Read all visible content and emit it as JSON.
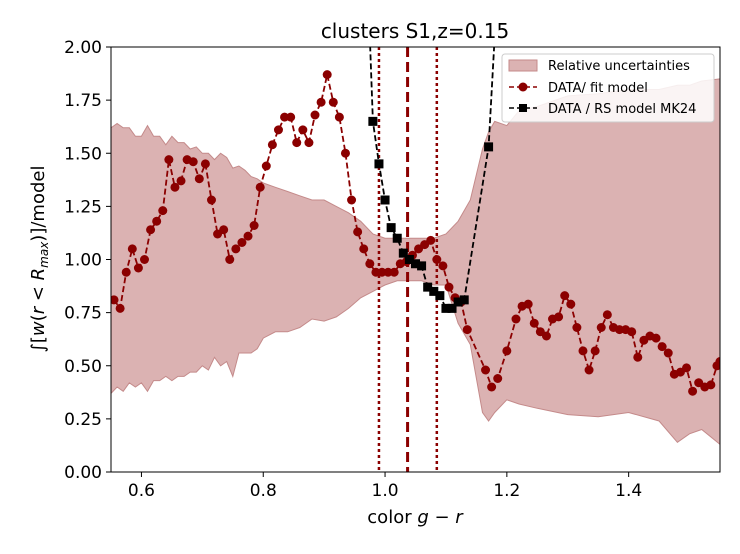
{
  "chart_data": {
    "type": "line",
    "title": "clusters S1,z=0.15",
    "xlabel": "color g − r",
    "ylabel": "∫[w(r < R_max)]/model",
    "xlim": [
      0.55,
      1.55
    ],
    "ylim": [
      0.0,
      2.0
    ],
    "xticks": [
      0.6,
      0.8,
      1.0,
      1.2,
      1.4
    ],
    "xtick_labels": [
      "0.6",
      "0.8",
      "1.0",
      "1.2",
      "1.4"
    ],
    "yticks": [
      0.0,
      0.25,
      0.5,
      0.75,
      1.0,
      1.25,
      1.5,
      1.75,
      2.0
    ],
    "ytick_labels": [
      "0.00",
      "0.25",
      "0.50",
      "0.75",
      "1.00",
      "1.25",
      "1.50",
      "1.75",
      "2.00"
    ],
    "grid": false,
    "legend_position": "top-right",
    "legend": [
      {
        "label": "Relative uncertainties",
        "kind": "band",
        "color": "#dbb2b2"
      },
      {
        "label": "DATA/ fit model",
        "kind": "line-circle",
        "color": "#8b0000"
      },
      {
        "label": "DATA / RS model MK24",
        "kind": "line-square",
        "color": "#000000"
      }
    ],
    "band": {
      "color": "#dbb2b2",
      "edge": "#c48a8a",
      "upper": [
        [
          0.55,
          1.62
        ],
        [
          0.56,
          1.64
        ],
        [
          0.57,
          1.62
        ],
        [
          0.58,
          1.62
        ],
        [
          0.59,
          1.58
        ],
        [
          0.6,
          1.58
        ],
        [
          0.61,
          1.63
        ],
        [
          0.62,
          1.58
        ],
        [
          0.63,
          1.58
        ],
        [
          0.64,
          1.54
        ],
        [
          0.65,
          1.58
        ],
        [
          0.66,
          1.55
        ],
        [
          0.67,
          1.55
        ],
        [
          0.68,
          1.52
        ],
        [
          0.69,
          1.53
        ],
        [
          0.7,
          1.5
        ],
        [
          0.71,
          1.5
        ],
        [
          0.72,
          1.47
        ],
        [
          0.73,
          1.5
        ],
        [
          0.74,
          1.48
        ],
        [
          0.75,
          1.43
        ],
        [
          0.76,
          1.44
        ],
        [
          0.77,
          1.42
        ],
        [
          0.78,
          1.39
        ],
        [
          0.79,
          1.38
        ],
        [
          0.8,
          1.36
        ],
        [
          0.82,
          1.34
        ],
        [
          0.84,
          1.32
        ],
        [
          0.86,
          1.3
        ],
        [
          0.88,
          1.28
        ],
        [
          0.9,
          1.28
        ],
        [
          0.92,
          1.25
        ],
        [
          0.94,
          1.22
        ],
        [
          0.96,
          1.18
        ],
        [
          0.98,
          1.12
        ],
        [
          1.0,
          1.1
        ],
        [
          1.02,
          1.1
        ],
        [
          1.04,
          1.1
        ],
        [
          1.06,
          1.1
        ],
        [
          1.08,
          1.1
        ],
        [
          1.1,
          1.12
        ],
        [
          1.12,
          1.18
        ],
        [
          1.14,
          1.28
        ],
        [
          1.16,
          1.52
        ],
        [
          1.17,
          1.6
        ],
        [
          1.18,
          1.65
        ],
        [
          1.2,
          1.63
        ],
        [
          1.22,
          1.7
        ],
        [
          1.25,
          1.72
        ],
        [
          1.3,
          1.77
        ],
        [
          1.35,
          1.78
        ],
        [
          1.4,
          1.8
        ],
        [
          1.45,
          1.8
        ],
        [
          1.48,
          1.82
        ],
        [
          1.5,
          1.82
        ],
        [
          1.52,
          1.84
        ],
        [
          1.55,
          1.85
        ]
      ],
      "lower": [
        [
          0.55,
          0.37
        ],
        [
          0.56,
          0.4
        ],
        [
          0.57,
          0.38
        ],
        [
          0.58,
          0.42
        ],
        [
          0.59,
          0.4
        ],
        [
          0.6,
          0.42
        ],
        [
          0.61,
          0.38
        ],
        [
          0.62,
          0.43
        ],
        [
          0.63,
          0.43
        ],
        [
          0.64,
          0.45
        ],
        [
          0.65,
          0.43
        ],
        [
          0.66,
          0.45
        ],
        [
          0.67,
          0.45
        ],
        [
          0.68,
          0.47
        ],
        [
          0.69,
          0.47
        ],
        [
          0.7,
          0.5
        ],
        [
          0.71,
          0.48
        ],
        [
          0.72,
          0.54
        ],
        [
          0.73,
          0.5
        ],
        [
          0.74,
          0.52
        ],
        [
          0.75,
          0.45
        ],
        [
          0.76,
          0.56
        ],
        [
          0.77,
          0.56
        ],
        [
          0.78,
          0.56
        ],
        [
          0.79,
          0.58
        ],
        [
          0.8,
          0.63
        ],
        [
          0.82,
          0.66
        ],
        [
          0.84,
          0.66
        ],
        [
          0.86,
          0.68
        ],
        [
          0.88,
          0.72
        ],
        [
          0.9,
          0.71
        ],
        [
          0.92,
          0.73
        ],
        [
          0.94,
          0.77
        ],
        [
          0.96,
          0.82
        ],
        [
          0.98,
          0.85
        ],
        [
          1.0,
          0.88
        ],
        [
          1.02,
          0.9
        ],
        [
          1.04,
          0.9
        ],
        [
          1.06,
          0.9
        ],
        [
          1.08,
          0.88
        ],
        [
          1.1,
          0.88
        ],
        [
          1.12,
          0.7
        ],
        [
          1.14,
          0.6
        ],
        [
          1.16,
          0.28
        ],
        [
          1.17,
          0.24
        ],
        [
          1.18,
          0.28
        ],
        [
          1.2,
          0.34
        ],
        [
          1.22,
          0.32
        ],
        [
          1.25,
          0.3
        ],
        [
          1.3,
          0.27
        ],
        [
          1.35,
          0.26
        ],
        [
          1.4,
          0.28
        ],
        [
          1.45,
          0.24
        ],
        [
          1.48,
          0.14
        ],
        [
          1.5,
          0.18
        ],
        [
          1.52,
          0.2
        ],
        [
          1.55,
          0.13
        ]
      ]
    },
    "series": [
      {
        "name": "DATA/ fit model",
        "color": "#8b0000",
        "marker": "circle",
        "points": [
          [
            0.555,
            0.81
          ],
          [
            0.565,
            0.77
          ],
          [
            0.575,
            0.94
          ],
          [
            0.585,
            1.05
          ],
          [
            0.595,
            0.96
          ],
          [
            0.605,
            1.0
          ],
          [
            0.615,
            1.14
          ],
          [
            0.625,
            1.18
          ],
          [
            0.635,
            1.23
          ],
          [
            0.645,
            1.47
          ],
          [
            0.655,
            1.34
          ],
          [
            0.665,
            1.37
          ],
          [
            0.675,
            1.47
          ],
          [
            0.685,
            1.46
          ],
          [
            0.695,
            1.38
          ],
          [
            0.705,
            1.45
          ],
          [
            0.715,
            1.28
          ],
          [
            0.725,
            1.12
          ],
          [
            0.735,
            1.14
          ],
          [
            0.745,
            1.0
          ],
          [
            0.755,
            1.05
          ],
          [
            0.765,
            1.08
          ],
          [
            0.775,
            1.11
          ],
          [
            0.785,
            1.16
          ],
          [
            0.795,
            1.34
          ],
          [
            0.805,
            1.44
          ],
          [
            0.815,
            1.54
          ],
          [
            0.825,
            1.61
          ],
          [
            0.835,
            1.67
          ],
          [
            0.845,
            1.67
          ],
          [
            0.855,
            1.55
          ],
          [
            0.865,
            1.61
          ],
          [
            0.875,
            1.55
          ],
          [
            0.885,
            1.68
          ],
          [
            0.895,
            1.74
          ],
          [
            0.905,
            1.87
          ],
          [
            0.915,
            1.74
          ],
          [
            0.925,
            1.67
          ],
          [
            0.935,
            1.5
          ],
          [
            0.945,
            1.28
          ],
          [
            0.955,
            1.13
          ],
          [
            0.965,
            1.05
          ],
          [
            0.975,
            0.98
          ],
          [
            0.985,
            0.94
          ],
          [
            0.995,
            0.94
          ],
          [
            1.005,
            0.94
          ],
          [
            1.015,
            0.94
          ],
          [
            1.025,
            0.98
          ],
          [
            1.035,
            0.99
          ],
          [
            1.045,
            1.02
          ],
          [
            1.055,
            1.05
          ],
          [
            1.065,
            1.07
          ],
          [
            1.075,
            1.09
          ],
          [
            1.085,
            1.0
          ],
          [
            1.095,
            0.97
          ],
          [
            1.105,
            0.87
          ],
          [
            1.115,
            0.82
          ],
          [
            1.125,
            0.8
          ],
          [
            1.135,
            0.67
          ],
          [
            1.165,
            0.48
          ],
          [
            1.175,
            0.4
          ],
          [
            1.185,
            0.44
          ],
          [
            1.2,
            0.57
          ],
          [
            1.215,
            0.72
          ],
          [
            1.225,
            0.78
          ],
          [
            1.235,
            0.79
          ],
          [
            1.245,
            0.7
          ],
          [
            1.255,
            0.66
          ],
          [
            1.265,
            0.64
          ],
          [
            1.275,
            0.72
          ],
          [
            1.285,
            0.73
          ],
          [
            1.295,
            0.83
          ],
          [
            1.305,
            0.79
          ],
          [
            1.315,
            0.68
          ],
          [
            1.325,
            0.57
          ],
          [
            1.335,
            0.48
          ],
          [
            1.345,
            0.57
          ],
          [
            1.355,
            0.68
          ],
          [
            1.365,
            0.74
          ],
          [
            1.375,
            0.68
          ],
          [
            1.385,
            0.67
          ],
          [
            1.395,
            0.67
          ],
          [
            1.405,
            0.66
          ],
          [
            1.415,
            0.54
          ],
          [
            1.425,
            0.62
          ],
          [
            1.435,
            0.64
          ],
          [
            1.445,
            0.63
          ],
          [
            1.455,
            0.59
          ],
          [
            1.465,
            0.56
          ],
          [
            1.475,
            0.46
          ],
          [
            1.485,
            0.47
          ],
          [
            1.495,
            0.49
          ],
          [
            1.505,
            0.38
          ],
          [
            1.515,
            0.42
          ],
          [
            1.525,
            0.4
          ],
          [
            1.535,
            0.41
          ],
          [
            1.545,
            0.5
          ],
          [
            1.55,
            0.52
          ]
        ]
      },
      {
        "name": "DATA / RS model MK24",
        "color": "#000000",
        "marker": "square",
        "points": [
          [
            0.98,
            1.65
          ],
          [
            0.99,
            1.45
          ],
          [
            1.0,
            1.28
          ],
          [
            1.01,
            1.15
          ],
          [
            1.02,
            1.1
          ],
          [
            1.03,
            1.03
          ],
          [
            1.04,
            1.0
          ],
          [
            1.05,
            0.98
          ],
          [
            1.06,
            0.97
          ],
          [
            1.07,
            0.87
          ],
          [
            1.08,
            0.85
          ],
          [
            1.09,
            0.83
          ],
          [
            1.1,
            0.77
          ],
          [
            1.11,
            0.77
          ],
          [
            1.12,
            0.8
          ],
          [
            1.13,
            0.81
          ],
          [
            1.17,
            1.53
          ]
        ],
        "offscreen_start": [
          0.975,
          2.05
        ],
        "offscreen_end": [
          1.18,
          2.05
        ]
      }
    ],
    "vlines": [
      {
        "x": 1.037,
        "style": "dashed",
        "color": "#8b0000"
      },
      {
        "x": 0.99,
        "style": "dotted",
        "color": "#8b0000"
      },
      {
        "x": 1.085,
        "style": "dotted",
        "color": "#8b0000"
      }
    ]
  }
}
